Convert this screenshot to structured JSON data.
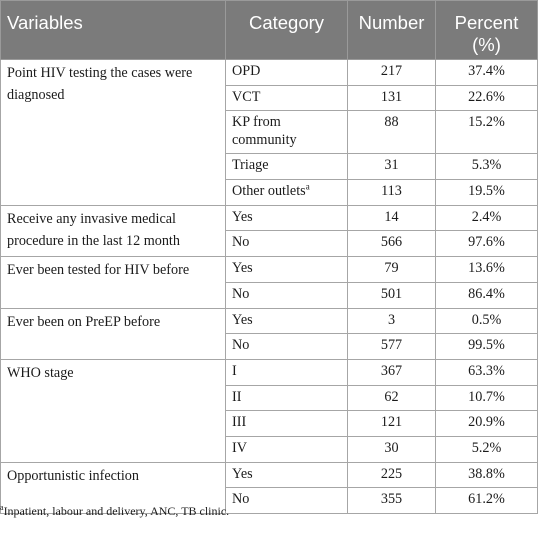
{
  "headers": {
    "variables": "Variables",
    "category": "Category",
    "number": "Number",
    "percent_line1": "Percent",
    "percent_line2": "(%)"
  },
  "rows": [
    {
      "variable": "Point HIV testing the cases were diagnosed",
      "category": "OPD",
      "number": "217",
      "percent": "37.4%"
    },
    {
      "category": "VCT",
      "number": "131",
      "percent": "22.6%"
    },
    {
      "category": "KP from community",
      "number": "88",
      "percent": "15.2%"
    },
    {
      "category": "Triage",
      "number": "31",
      "percent": "5.3%"
    },
    {
      "category": "Other outlets",
      "category_sup": "a",
      "number": "113",
      "percent": "19.5%"
    },
    {
      "variable": "Receive any invasive medical procedure in the last 12 month",
      "category": "Yes",
      "number": "14",
      "percent": "2.4%"
    },
    {
      "category": "No",
      "number": "566",
      "percent": "97.6%"
    },
    {
      "variable": "Ever been tested for HIV before",
      "category": "Yes",
      "number": "79",
      "percent": "13.6%"
    },
    {
      "category": "No",
      "number": "501",
      "percent": "86.4%"
    },
    {
      "variable": "Ever been on PreEP before",
      "category": "Yes",
      "number": "3",
      "percent": "0.5%"
    },
    {
      "category": "No",
      "number": "577",
      "percent": "99.5%"
    },
    {
      "variable": "WHO stage",
      "category": "I",
      "number": "367",
      "percent": "63.3%"
    },
    {
      "category": "II",
      "number": "62",
      "percent": "10.7%"
    },
    {
      "category": "III",
      "number": "121",
      "percent": "20.9%"
    },
    {
      "category": "IV",
      "number": "30",
      "percent": "5.2%"
    },
    {
      "variable": "Opportunistic infection",
      "category": "Yes",
      "number": "225",
      "percent": "38.8%"
    },
    {
      "category": "No",
      "number": "355",
      "percent": "61.2%"
    }
  ],
  "footnote": {
    "marker": "a",
    "text": "Inpatient, labour and delivery, ANC, TB clinic."
  }
}
